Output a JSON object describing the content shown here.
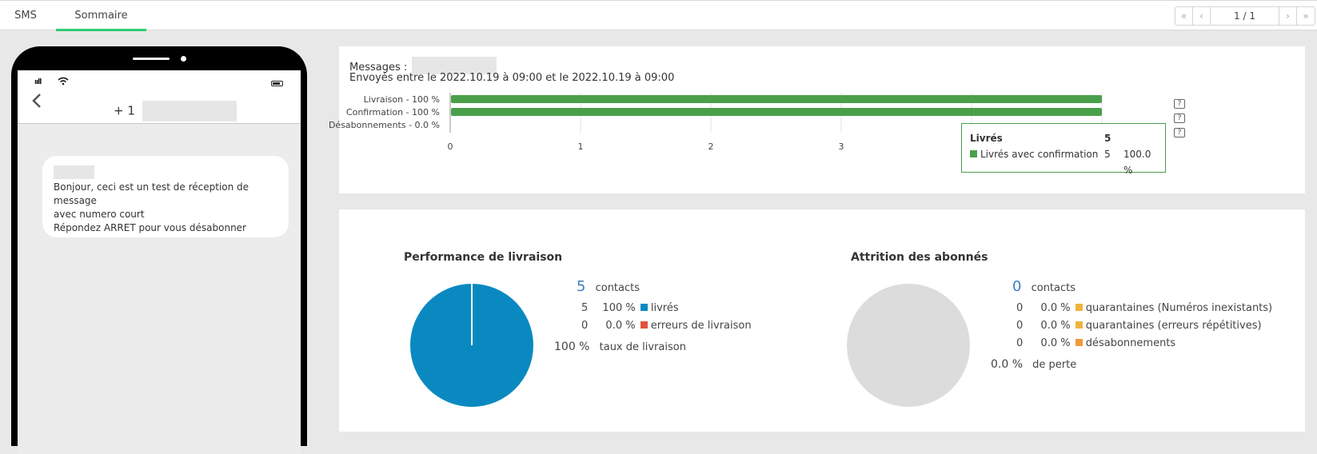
{
  "tabs": [
    {
      "label": "SMS"
    },
    {
      "label": "Sommaire"
    }
  ],
  "pager": {
    "first": "«",
    "prev": "‹",
    "value": "1 / 1",
    "next": "›",
    "last": "»"
  },
  "phone": {
    "signal": "ııll",
    "number_prefix": "+ 1",
    "message_lines": [
      "Bonjour, ceci est un test de réception de message",
      "avec numero court",
      "Répondez ARRET pour vous désabonner"
    ]
  },
  "summary": {
    "messages_label": "Messages :",
    "sent_prefix": "Envoyés entre le ",
    "sent_start": "2022.10.19 à 09:00",
    "sent_mid": " et le ",
    "sent_end": "2022.10.19 à 09:00"
  },
  "chart_data": {
    "type": "bar",
    "orientation": "horizontal",
    "categories": [
      "Livraison - 100 %",
      "Confirmation - 100 %",
      "Désabonnements - 0.0 %"
    ],
    "values": [
      5,
      5,
      0
    ],
    "xlim": [
      0,
      5
    ],
    "xticks": [
      "0",
      "1",
      "2",
      "3"
    ],
    "bar_color": "#4aa04a",
    "grid": true
  },
  "tooltip": {
    "title": "Livrés",
    "title_value": "5",
    "row_label": "Livrés avec confirmation",
    "row_value": "5",
    "row_pct": "100.0 %",
    "color": "#4aa04a"
  },
  "delivery": {
    "title": "Performance de livraison",
    "contacts_count": "5",
    "contacts_label": "contacts",
    "rows": [
      {
        "count": "5",
        "pct": "100 %",
        "label": "livrés",
        "color": "#0a89c1"
      },
      {
        "count": "0",
        "pct": "0.0 %",
        "label": "erreurs de livraison",
        "color": "#e0533c"
      }
    ],
    "rate_value": "100 %",
    "rate_label": "taux de livraison",
    "pie": {
      "slices": [
        {
          "label": "livrés",
          "value": 100,
          "color": "#0a89c1"
        },
        {
          "label": "erreurs de livraison",
          "value": 0,
          "color": "#e0533c"
        }
      ]
    }
  },
  "attrition": {
    "title": "Attrition des abonnés",
    "contacts_count": "0",
    "contacts_label": "contacts",
    "rows": [
      {
        "count": "0",
        "pct": "0.0 %",
        "label": "quarantaines (Numéros inexistants)",
        "color": "#f0b43c"
      },
      {
        "count": "0",
        "pct": "0.0 %",
        "label": "quarantaines (erreurs répétitives)",
        "color": "#f0b43c"
      },
      {
        "count": "0",
        "pct": "0.0 %",
        "label": "désabonnements",
        "color": "#f09a3c"
      }
    ],
    "loss_value": "0.0 %",
    "loss_label": "de perte",
    "pie_color": "#dcdcdc"
  }
}
